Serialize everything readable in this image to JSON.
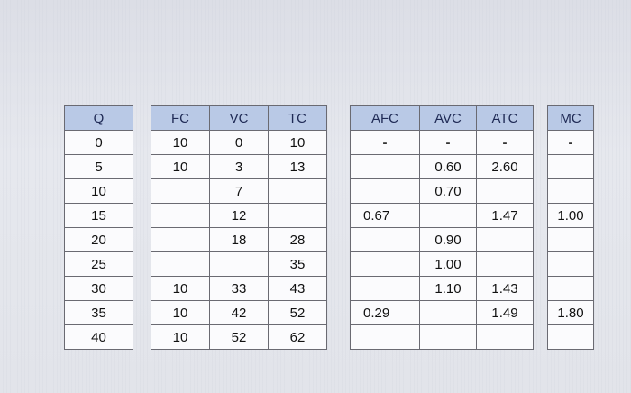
{
  "tables": {
    "q": {
      "header": "Q",
      "rows": [
        "0",
        "5",
        "10",
        "15",
        "20",
        "25",
        "30",
        "35",
        "40"
      ]
    },
    "cost": {
      "headers": [
        "FC",
        "VC",
        "TC"
      ],
      "rows": [
        [
          "10",
          "0",
          "10"
        ],
        [
          "10",
          "3",
          "13"
        ],
        [
          "",
          "7",
          ""
        ],
        [
          "",
          "12",
          ""
        ],
        [
          "",
          "18",
          "28"
        ],
        [
          "",
          "",
          "35"
        ],
        [
          "10",
          "33",
          "43"
        ],
        [
          "10",
          "42",
          "52"
        ],
        [
          "10",
          "52",
          "62"
        ]
      ]
    },
    "averages": {
      "headers": [
        "AFC",
        "AVC",
        "ATC"
      ],
      "rows": [
        [
          "-",
          "-",
          "-"
        ],
        [
          "",
          "0.60",
          "2.60"
        ],
        [
          "",
          "0.70",
          ""
        ],
        [
          "0.67",
          "",
          "1.47"
        ],
        [
          "",
          "0.90",
          ""
        ],
        [
          "",
          "1.00",
          ""
        ],
        [
          "",
          "1.10",
          "1.43"
        ],
        [
          "0.29",
          "",
          "1.49"
        ],
        [
          "",
          "",
          ""
        ]
      ]
    },
    "mc": {
      "header": "MC",
      "rows": [
        "-",
        "",
        "",
        "1.00",
        "",
        "",
        "",
        "1.80",
        ""
      ]
    }
  }
}
